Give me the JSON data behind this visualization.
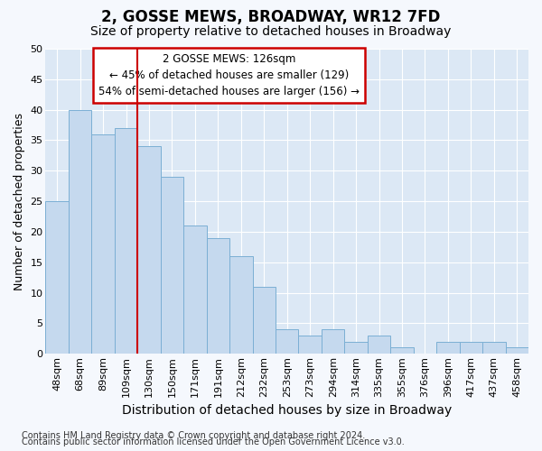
{
  "title": "2, GOSSE MEWS, BROADWAY, WR12 7FD",
  "subtitle": "Size of property relative to detached houses in Broadway",
  "xlabel": "Distribution of detached houses by size in Broadway",
  "ylabel": "Number of detached properties",
  "categories": [
    "48sqm",
    "68sqm",
    "89sqm",
    "109sqm",
    "130sqm",
    "150sqm",
    "171sqm",
    "191sqm",
    "212sqm",
    "232sqm",
    "253sqm",
    "273sqm",
    "294sqm",
    "314sqm",
    "335sqm",
    "355sqm",
    "376sqm",
    "396sqm",
    "417sqm",
    "437sqm",
    "458sqm"
  ],
  "values": [
    25,
    40,
    36,
    37,
    34,
    29,
    21,
    19,
    16,
    11,
    4,
    3,
    4,
    2,
    3,
    1,
    0,
    2,
    2,
    2,
    1
  ],
  "bar_color": "#c5d9ee",
  "bar_edge_color": "#7bafd4",
  "background_color": "#dce8f5",
  "grid_color": "#ffffff",
  "redline_x": 4,
  "annotation_line1": "2 GOSSE MEWS: 126sqm",
  "annotation_line2": "← 45% of detached houses are smaller (129)",
  "annotation_line3": "54% of semi-detached houses are larger (156) →",
  "annotation_box_color": "#ffffff",
  "annotation_box_edge_color": "#cc0000",
  "ylim": [
    0,
    50
  ],
  "yticks": [
    0,
    5,
    10,
    15,
    20,
    25,
    30,
    35,
    40,
    45,
    50
  ],
  "title_fontsize": 12,
  "subtitle_fontsize": 10,
  "footer1": "Contains HM Land Registry data © Crown copyright and database right 2024.",
  "footer2": "Contains public sector information licensed under the Open Government Licence v3.0.",
  "footer_fontsize": 7
}
